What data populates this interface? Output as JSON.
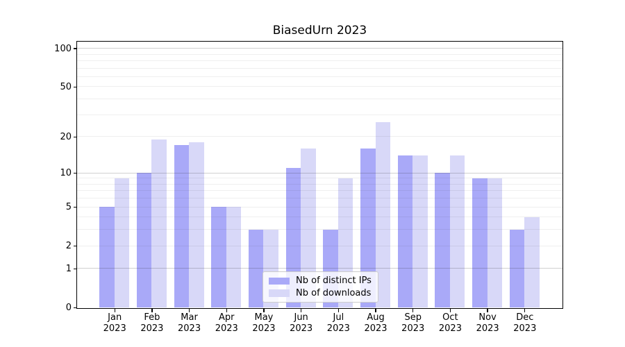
{
  "chart_data": {
    "type": "bar",
    "title": "BiasedUrn 2023",
    "categories": [
      "Jan",
      "Feb",
      "Mar",
      "Apr",
      "May",
      "Jun",
      "Jul",
      "Aug",
      "Sep",
      "Oct",
      "Nov",
      "Dec"
    ],
    "year_label": "2023",
    "series": [
      {
        "name": "Nb of distinct IPs",
        "color": "#a9a9f8",
        "values": [
          5,
          10,
          17,
          5,
          3,
          11,
          3,
          16,
          14,
          10,
          9,
          3
        ]
      },
      {
        "name": "Nb of downloads",
        "color": "#d8d8f8",
        "values": [
          9,
          19,
          18,
          5,
          3,
          16,
          9,
          26,
          14,
          14,
          9,
          4
        ]
      }
    ],
    "y_axis": {
      "scale": "log1p",
      "tick_values": [
        100,
        50,
        20,
        10,
        5,
        2,
        1,
        0
      ],
      "major_gridlines": [
        1,
        10,
        100
      ],
      "minor_gridlines": [
        2,
        3,
        4,
        5,
        6,
        7,
        8,
        9,
        20,
        30,
        40,
        50,
        60,
        70,
        80,
        90
      ],
      "range": [
        0,
        113
      ]
    },
    "xlabel": "",
    "ylabel": "",
    "grid": true,
    "legend_position": "lower center, inside plot"
  },
  "colors": {
    "bar_ips": "#a9a9f8",
    "bar_downloads": "#d8d8f8",
    "major_grid": "rgba(40,40,40,0.22)",
    "minor_grid": "rgba(40,40,40,0.075)",
    "spine": "#000000",
    "background": "#ffffff",
    "text": "#000000",
    "legend_border": "#cccccc",
    "legend_background": "rgba(255,255,255,0.8)"
  }
}
